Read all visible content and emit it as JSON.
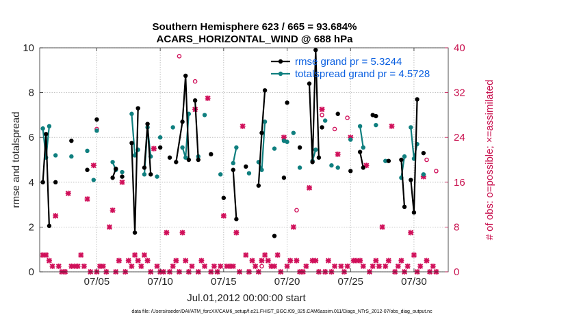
{
  "chart_data": {
    "type": "line",
    "title_line1": "Southern Hemisphere 623 / 665 = 93.684%",
    "title_line2": "ACARS_HORIZONTAL_WIND @ 688 hPa",
    "xlabel": "Jul.01,2012 00:00:00 start",
    "ylabel_left": "rmse and totalspread",
    "ylabel_right": "# of obs: o=possible; ×=assimilated",
    "xlim": [
      0.5,
      32.7
    ],
    "ylim_left": [
      0,
      10
    ],
    "ylim_right": [
      0,
      40
    ],
    "xticks": [
      {
        "v": 5,
        "label": "07/05"
      },
      {
        "v": 10,
        "label": "07/10"
      },
      {
        "v": 15,
        "label": "07/15"
      },
      {
        "v": 20,
        "label": "07/20"
      },
      {
        "v": 25,
        "label": "07/25"
      },
      {
        "v": 30,
        "label": "07/30"
      }
    ],
    "yticks_left": [
      0,
      2,
      4,
      6,
      8,
      10
    ],
    "yticks_right": [
      0,
      8,
      16,
      24,
      32,
      40
    ],
    "footer": "data file: /Users/raeder/DAI/ATM_forcXX/CAM6_setup/f.e21.FHIST_BGC.f09_025.CAM6assim.011/Diags_NTrS_2012-07/obs_diag_output.nc",
    "colors": {
      "rmse": "#000000",
      "spread": "#0f7f7f",
      "obs": "#d0105a",
      "legend_text": "#0a5fe0"
    },
    "series": [
      {
        "name": "rmse",
        "legend": "rmse grand pr = 5.3244",
        "points": [
          [
            [
              0.75,
              4.0
            ],
            [
              1.0,
              6.15
            ],
            [
              1.25,
              2.05
            ]
          ],
          [
            [
              1.75,
              4.0
            ]
          ],
          [
            [
              3.0,
              5.85
            ]
          ],
          [
            [
              4.25,
              4.55
            ]
          ],
          [
            [
              5.0,
              6.8
            ]
          ],
          [
            [
              6.25,
              4.2
            ],
            [
              6.5,
              4.6
            ]
          ],
          [
            [
              7.0,
              4.25
            ]
          ],
          [
            [
              7.75,
              5.75
            ],
            [
              8.0,
              1.75
            ],
            [
              8.25,
              7.3
            ]
          ],
          [
            [
              8.75,
              4.65
            ],
            [
              9.0,
              6.6
            ],
            [
              9.25,
              4.35
            ]
          ],
          [
            [
              10.0,
              5.55
            ]
          ],
          [
            [
              10.75,
              5.1
            ]
          ],
          [
            [
              11.25,
              4.9
            ],
            [
              11.75,
              6.7
            ],
            [
              12.0,
              8.75
            ],
            [
              12.25,
              5.0
            ]
          ],
          [
            [
              12.75,
              7.65
            ],
            [
              13.0,
              5.0
            ]
          ],
          [
            [
              14.0,
              5.25
            ]
          ],
          [
            [
              15.0,
              3.3
            ]
          ],
          [
            [
              15.75,
              4.55
            ],
            [
              16.0,
              2.35
            ]
          ],
          [
            [
              16.75,
              4.7
            ]
          ],
          [
            [
              17.75,
              3.85
            ],
            [
              18.0,
              6.2
            ],
            [
              18.25,
              8.1
            ]
          ],
          [
            [
              19.0,
              1.6
            ]
          ],
          [
            [
              19.75,
              4.2
            ]
          ],
          [
            [
              20.0,
              7.55
            ]
          ],
          [
            [
              21.0,
              5.55
            ]
          ],
          [
            [
              21.75,
              8.4
            ],
            [
              22.0,
              4.9
            ],
            [
              22.25,
              9.9
            ],
            [
              22.5,
              5.1
            ]
          ],
          [
            [
              22.75,
              6.45
            ]
          ],
          [
            [
              24.0,
              7.05
            ]
          ],
          [
            [
              25.0,
              4.5
            ]
          ],
          [
            [
              25.75,
              5.35
            ],
            [
              26.0,
              4.65
            ]
          ],
          [
            [
              26.75,
              7.0
            ],
            [
              27.0,
              6.95
            ]
          ],
          [
            [
              28.0,
              4.95
            ]
          ],
          [
            [
              29.0,
              5.0
            ],
            [
              29.25,
              2.9
            ]
          ],
          [
            [
              29.75,
              4.1
            ],
            [
              30.0,
              2.65
            ],
            [
              30.25,
              7.7
            ]
          ],
          [
            [
              30.75,
              5.3
            ]
          ]
        ]
      },
      {
        "name": "totalspread",
        "legend": "totalspread grand pr = 4.5728",
        "points": [
          [
            [
              0.75,
              6.4
            ],
            [
              1.0,
              5.1
            ],
            [
              1.25,
              6.5
            ]
          ],
          [
            [
              1.75,
              5.2
            ]
          ],
          [
            [
              3.0,
              5.15
            ]
          ],
          [
            [
              4.25,
              5.4
            ]
          ],
          [
            [
              4.75,
              4.1
            ]
          ],
          [
            [
              5.0,
              6.3
            ]
          ],
          [
            [
              6.25,
              4.9
            ],
            [
              6.5,
              4.55
            ]
          ],
          [
            [
              7.0,
              4.45
            ]
          ],
          [
            [
              7.75,
              7.05
            ],
            [
              8.0,
              5.2
            ],
            [
              8.25,
              5.45
            ]
          ],
          [
            [
              8.75,
              4.35
            ],
            [
              9.0,
              6.45
            ],
            [
              9.25,
              5.15
            ]
          ],
          [
            [
              9.75,
              4.25
            ]
          ],
          [
            [
              10.0,
              6.0
            ]
          ],
          [
            [
              11.0,
              6.45
            ]
          ],
          [
            [
              11.75,
              5.55
            ],
            [
              12.0,
              5.1
            ],
            [
              12.25,
              7.05
            ]
          ],
          [
            [
              13.0,
              5.15
            ]
          ],
          [
            [
              13.5,
              7.0
            ]
          ],
          [
            [
              14.75,
              4.35
            ]
          ],
          [
            [
              15.75,
              4.85
            ],
            [
              16.0,
              5.55
            ]
          ],
          [
            [
              17.0,
              4.4
            ]
          ],
          [
            [
              17.75,
              4.9
            ],
            [
              18.0,
              4.55
            ],
            [
              18.25,
              6.7
            ]
          ],
          [
            [
              19.0,
              5.5
            ]
          ],
          [
            [
              19.75,
              5.85
            ],
            [
              20.0,
              5.8
            ]
          ],
          [
            [
              20.5,
              6.2
            ]
          ],
          [
            [
              21.0,
              4.65
            ]
          ],
          [
            [
              22.0,
              4.95
            ],
            [
              22.25,
              5.45
            ]
          ],
          [
            [
              23.0,
              6.75
            ]
          ],
          [
            [
              23.5,
              4.75
            ]
          ],
          [
            [
              24.0,
              4.65
            ]
          ],
          [
            [
              25.0,
              5.9
            ]
          ],
          [
            [
              25.75,
              6.5
            ],
            [
              26.0,
              5.55
            ]
          ],
          [
            [
              27.0,
              6.55
            ]
          ],
          [
            [
              27.75,
              4.95
            ]
          ],
          [
            [
              29.0,
              4.2
            ],
            [
              29.25,
              5.15
            ]
          ],
          [
            [
              29.75,
              6.45
            ],
            [
              30.0,
              5.05
            ],
            [
              30.25,
              5.7
            ]
          ],
          [
            [
              30.75,
              4.35
            ]
          ]
        ]
      },
      {
        "name": "obs_possible",
        "axis": "right",
        "values": [
          [
            5.0,
            25.5
          ],
          [
            11.5,
            38.5
          ],
          [
            12.75,
            34.0
          ],
          [
            18.0,
            1.0
          ],
          [
            20.75,
            11.0
          ],
          [
            22.75,
            28.0
          ],
          [
            23.75,
            25.5
          ],
          [
            24.75,
            27.5
          ],
          [
            31.0,
            20.0
          ],
          [
            31.75,
            18.0
          ]
        ]
      },
      {
        "name": "obs_assimilated",
        "axis": "right",
        "values": [
          [
            0.75,
            3.0
          ],
          [
            1.0,
            3.0
          ],
          [
            1.25,
            2.0
          ],
          [
            1.5,
            1.0
          ],
          [
            1.75,
            10.0
          ],
          [
            2.0,
            1.0
          ],
          [
            2.25,
            0.0
          ],
          [
            2.5,
            0.0
          ],
          [
            2.75,
            14.0
          ],
          [
            3.0,
            1.0
          ],
          [
            3.25,
            1.0
          ],
          [
            3.5,
            1.0
          ],
          [
            3.75,
            3.0
          ],
          [
            4.0,
            1.0
          ],
          [
            4.25,
            13.0
          ],
          [
            4.5,
            0.0
          ],
          [
            4.75,
            19.0
          ],
          [
            5.0,
            0.0
          ],
          [
            5.25,
            1.0
          ],
          [
            5.5,
            1.0
          ],
          [
            5.75,
            0.0
          ],
          [
            6.0,
            8.0
          ],
          [
            6.25,
            11.0
          ],
          [
            6.5,
            0.0
          ],
          [
            6.75,
            2.0
          ],
          [
            7.0,
            16.0
          ],
          [
            7.25,
            0.0
          ],
          [
            7.5,
            2.0
          ],
          [
            7.75,
            1.0
          ],
          [
            8.0,
            3.0
          ],
          [
            8.25,
            2.0
          ],
          [
            8.5,
            1.0
          ],
          [
            8.75,
            3.0
          ],
          [
            9.0,
            2.0
          ],
          [
            9.25,
            0.0
          ],
          [
            9.5,
            22.0
          ],
          [
            9.75,
            1.0
          ],
          [
            10.0,
            0.0
          ],
          [
            10.25,
            0.0
          ],
          [
            10.5,
            7.0
          ],
          [
            10.75,
            0.0
          ],
          [
            11.0,
            1.0
          ],
          [
            11.25,
            2.0
          ],
          [
            11.5,
            0.0
          ],
          [
            11.75,
            7.0
          ],
          [
            12.0,
            2.0
          ],
          [
            12.25,
            0.0
          ],
          [
            12.5,
            1.0
          ],
          [
            12.75,
            29.0
          ],
          [
            13.0,
            0.0
          ],
          [
            13.25,
            2.0
          ],
          [
            13.5,
            1.0
          ],
          [
            13.75,
            31.0
          ],
          [
            14.0,
            0.0
          ],
          [
            14.25,
            1.0
          ],
          [
            14.5,
            0.0
          ],
          [
            14.75,
            1.0
          ],
          [
            15.0,
            10.0
          ],
          [
            15.25,
            1.0
          ],
          [
            15.5,
            1.0
          ],
          [
            15.75,
            1.0
          ],
          [
            16.0,
            7.0
          ],
          [
            16.25,
            0.0
          ],
          [
            16.5,
            26.0
          ],
          [
            16.75,
            3.0
          ],
          [
            17.0,
            0.0
          ],
          [
            17.25,
            2.0
          ],
          [
            17.5,
            1.0
          ],
          [
            17.75,
            0.0
          ],
          [
            18.0,
            2.0
          ],
          [
            18.25,
            3.0
          ],
          [
            18.5,
            2.0
          ],
          [
            18.75,
            1.0
          ],
          [
            19.0,
            1.0
          ],
          [
            19.25,
            3.0
          ],
          [
            19.5,
            0.0
          ],
          [
            19.75,
            24.0
          ],
          [
            20.0,
            1.0
          ],
          [
            20.25,
            2.0
          ],
          [
            20.5,
            8.0
          ],
          [
            20.75,
            2.0
          ],
          [
            21.0,
            0.0
          ],
          [
            21.25,
            0.0
          ],
          [
            21.5,
            1.0
          ],
          [
            21.75,
            15.0
          ],
          [
            22.0,
            2.0
          ],
          [
            22.25,
            2.0
          ],
          [
            22.5,
            0.0
          ],
          [
            22.75,
            29.0
          ],
          [
            23.0,
            0.0
          ],
          [
            23.25,
            2.0
          ],
          [
            23.5,
            0.0
          ],
          [
            23.75,
            1.0
          ],
          [
            24.0,
            21.0
          ],
          [
            24.25,
            1.0
          ],
          [
            24.5,
            0.0
          ],
          [
            24.75,
            1.0
          ],
          [
            25.0,
            24.0
          ],
          [
            25.25,
            2.0
          ],
          [
            25.5,
            2.0
          ],
          [
            25.75,
            2.0
          ],
          [
            26.0,
            1.0
          ],
          [
            26.25,
            19.0
          ],
          [
            26.5,
            0.0
          ],
          [
            26.75,
            1.0
          ],
          [
            27.0,
            2.0
          ],
          [
            27.25,
            1.0
          ],
          [
            27.5,
            8.0
          ],
          [
            27.75,
            1.0
          ],
          [
            28.0,
            2.0
          ],
          [
            28.25,
            26.0
          ],
          [
            28.5,
            0.0
          ],
          [
            28.75,
            1.0
          ],
          [
            29.0,
            2.0
          ],
          [
            29.25,
            0.0
          ],
          [
            29.5,
            1.0
          ],
          [
            29.75,
            7.0
          ],
          [
            30.0,
            3.0
          ],
          [
            30.25,
            0.0
          ],
          [
            30.5,
            1.0
          ],
          [
            30.75,
            17.0
          ],
          [
            31.0,
            2.0
          ],
          [
            31.25,
            0.0
          ],
          [
            31.5,
            1.0
          ],
          [
            31.75,
            0.0
          ]
        ]
      }
    ]
  }
}
